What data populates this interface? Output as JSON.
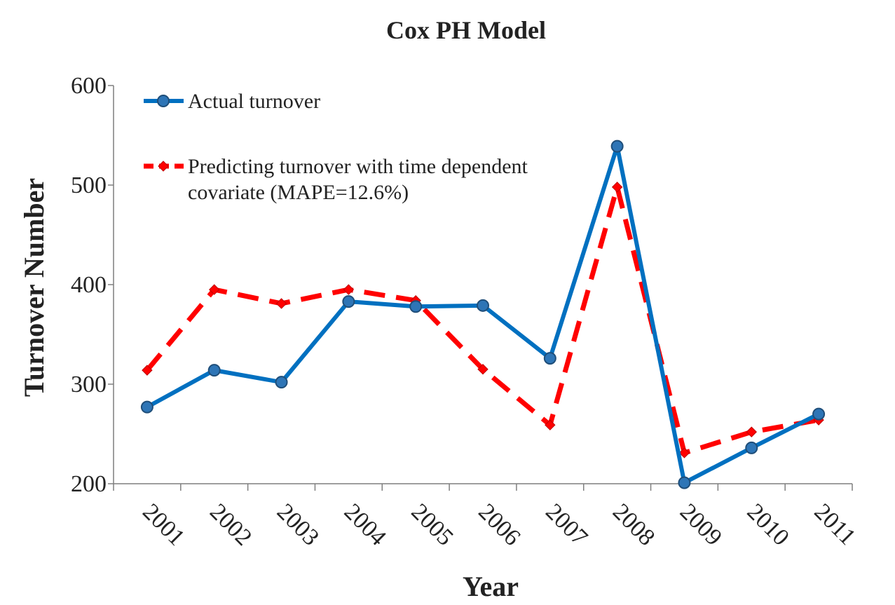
{
  "chart_data": {
    "type": "line",
    "title": "Cox PH Model",
    "xlabel": "Year",
    "ylabel": "Turnover Number",
    "categories": [
      "2001",
      "2002",
      "2003",
      "2004",
      "2005",
      "2006",
      "2007",
      "2008",
      "2009",
      "2010",
      "2011"
    ],
    "ylim": [
      200,
      600
    ],
    "yticks": [
      "200",
      "300",
      "400",
      "500",
      "600"
    ],
    "grid": false,
    "legend_position": "top-left",
    "series": [
      {
        "name": "Actual turnover",
        "values": [
          277,
          314,
          302,
          383,
          378,
          379,
          326,
          539,
          201,
          236,
          270
        ],
        "color": "#0070C0",
        "style": "solid",
        "marker": "circle"
      },
      {
        "name": "Predicting turnover with time dependent covariate (MAPE=12.6%)",
        "legend_lines": [
          "Predicting turnover with time dependent",
          "covariate (MAPE=12.6%)"
        ],
        "values": [
          314,
          395,
          381,
          395,
          384,
          315,
          259,
          498,
          231,
          252,
          264
        ],
        "color": "#FF0000",
        "style": "dashed",
        "marker": "diamond"
      }
    ]
  }
}
